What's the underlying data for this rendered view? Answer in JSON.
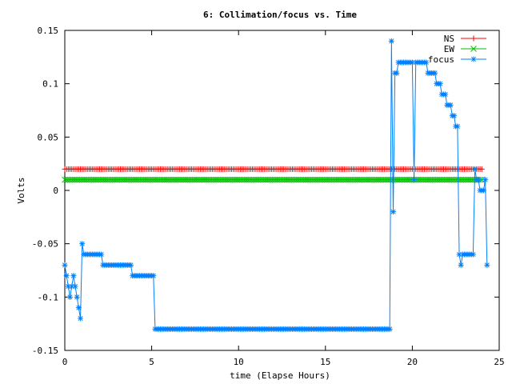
{
  "chart_data": {
    "type": "line",
    "title": "6: Collimation/focus vs. Time",
    "xlabel": "time (Elapse Hours)",
    "ylabel": "Volts",
    "xlim": [
      0,
      25
    ],
    "ylim": [
      -0.15,
      0.15
    ],
    "xticks": [
      0,
      5,
      10,
      15,
      20,
      25
    ],
    "xtick_labels": [
      "0",
      "5",
      "10",
      "15",
      "20",
      "25"
    ],
    "yticks": [
      -0.15,
      -0.1,
      -0.05,
      0,
      0.05,
      0.1,
      0.15
    ],
    "ytick_labels": [
      "-0.15",
      "-0.1",
      "-0.05",
      "0",
      "0.05",
      "0.1",
      "0.15"
    ],
    "grid": false,
    "legend_position": "top-right",
    "colors": {
      "NS": "#ff0000",
      "EW": "#00c000",
      "focus": "#0080ff"
    },
    "series": [
      {
        "name": "NS",
        "marker": "plus",
        "x_range": [
          0,
          24
        ],
        "x_step": 0.1,
        "value": 0.02
      },
      {
        "name": "EW",
        "marker": "cross",
        "x_range": [
          0,
          24
        ],
        "x_step": 0.1,
        "value": 0.01
      },
      {
        "name": "focus",
        "marker": "star",
        "x_step": 0.1,
        "points": [
          [
            0.0,
            -0.07
          ],
          [
            0.1,
            -0.08
          ],
          [
            0.2,
            -0.09
          ],
          [
            0.3,
            -0.1
          ],
          [
            0.4,
            -0.09
          ],
          [
            0.5,
            -0.08
          ],
          [
            0.6,
            -0.09
          ],
          [
            0.7,
            -0.1
          ],
          [
            0.8,
            -0.11
          ],
          [
            0.9,
            -0.12
          ],
          [
            1.0,
            -0.05
          ],
          [
            1.1,
            -0.06
          ],
          [
            1.2,
            -0.06
          ],
          [
            1.4,
            -0.06
          ],
          [
            2.1,
            -0.06
          ],
          [
            2.2,
            -0.07
          ],
          [
            3.8,
            -0.07
          ],
          [
            3.9,
            -0.08
          ],
          [
            5.1,
            -0.08
          ],
          [
            5.2,
            -0.13
          ],
          [
            18.7,
            -0.13
          ],
          [
            18.8,
            0.14
          ],
          [
            18.9,
            -0.02
          ],
          [
            19.0,
            0.11
          ],
          [
            19.1,
            0.11
          ],
          [
            19.2,
            0.12
          ],
          [
            20.0,
            0.12
          ],
          [
            20.1,
            0.01
          ],
          [
            20.2,
            0.12
          ],
          [
            20.8,
            0.12
          ],
          [
            20.9,
            0.11
          ],
          [
            21.3,
            0.11
          ],
          [
            21.4,
            0.1
          ],
          [
            21.6,
            0.1
          ],
          [
            21.7,
            0.09
          ],
          [
            21.9,
            0.09
          ],
          [
            22.0,
            0.08
          ],
          [
            22.2,
            0.08
          ],
          [
            22.3,
            0.07
          ],
          [
            22.4,
            0.07
          ],
          [
            22.5,
            0.06
          ],
          [
            22.6,
            0.06
          ],
          [
            22.7,
            -0.06
          ],
          [
            22.8,
            -0.07
          ],
          [
            22.9,
            -0.06
          ],
          [
            23.5,
            -0.06
          ],
          [
            23.6,
            0.02
          ],
          [
            23.7,
            0.01
          ],
          [
            23.8,
            0.01
          ],
          [
            23.9,
            0.0
          ],
          [
            24.1,
            0.0
          ],
          [
            24.2,
            0.01
          ],
          [
            24.3,
            -0.07
          ]
        ]
      }
    ]
  }
}
